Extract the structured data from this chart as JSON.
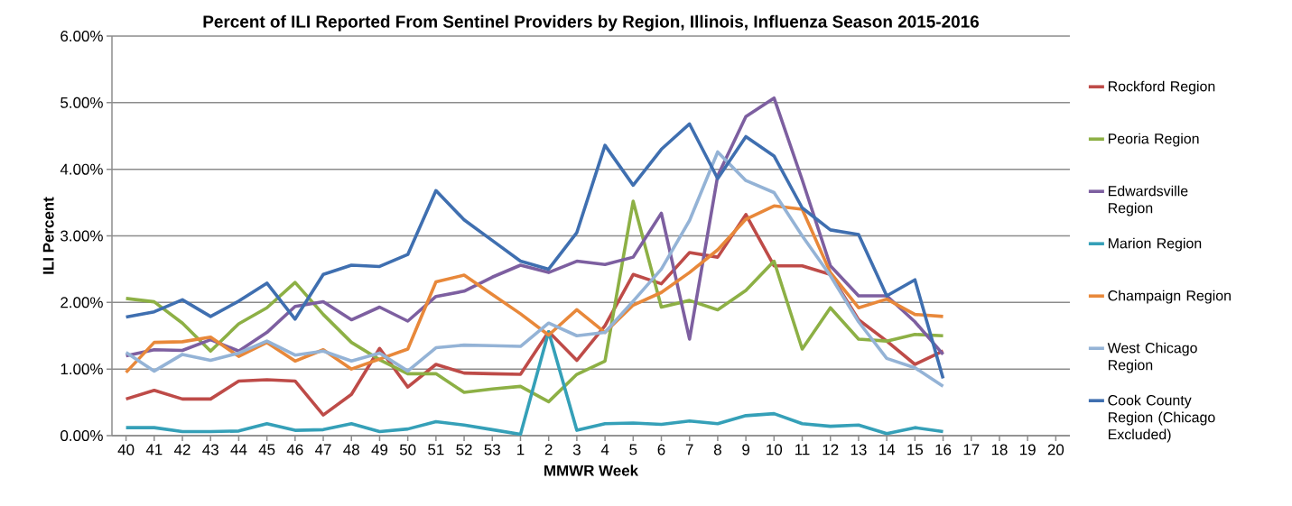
{
  "chart_data": {
    "type": "line",
    "title": "Percent of ILI Reported From Sentinel Providers by Region, Illinois, Influenza Season 2015-2016",
    "xlabel": "MMWR Week",
    "ylabel": "ILI Percent",
    "categories": [
      "40",
      "41",
      "42",
      "43",
      "44",
      "45",
      "46",
      "47",
      "48",
      "49",
      "50",
      "51",
      "52",
      "53",
      "1",
      "2",
      "3",
      "4",
      "5",
      "6",
      "7",
      "8",
      "9",
      "10",
      "11",
      "12",
      "13",
      "14",
      "15",
      "16",
      "17",
      "18",
      "19",
      "20"
    ],
    "ylim": [
      0,
      6
    ],
    "yticks": [
      {
        "value": 0,
        "label": "0.00%"
      },
      {
        "value": 1,
        "label": "1.00%"
      },
      {
        "value": 2,
        "label": "2.00%"
      },
      {
        "value": 3,
        "label": "3.00%"
      },
      {
        "value": 4,
        "label": "4.00%"
      },
      {
        "value": 5,
        "label": "5.00%"
      },
      {
        "value": 6,
        "label": "6.00%"
      }
    ],
    "grid": "y",
    "legend": "right",
    "marker": "none",
    "line_style": "solid",
    "series": [
      {
        "name": "Rockford Region",
        "color": "#be4b48",
        "values": [
          0.55,
          0.68,
          0.55,
          0.55,
          0.82,
          0.84,
          0.82,
          0.31,
          0.62,
          1.31,
          0.73,
          1.07,
          0.94,
          0.93,
          0.92,
          1.56,
          1.13,
          1.65,
          2.42,
          2.28,
          2.75,
          2.68,
          3.32,
          2.55,
          2.55,
          2.42,
          1.74,
          1.42,
          1.07,
          1.27,
          null,
          null,
          null,
          null
        ]
      },
      {
        "name": "Peoria Region",
        "color": "#8db045",
        "values": [
          2.06,
          2.01,
          1.69,
          1.27,
          1.68,
          1.92,
          2.3,
          1.82,
          1.4,
          1.14,
          0.93,
          0.93,
          0.65,
          0.7,
          0.74,
          0.51,
          0.92,
          1.12,
          3.52,
          1.93,
          2.03,
          1.89,
          2.18,
          2.62,
          1.3,
          1.92,
          1.45,
          1.42,
          1.52,
          1.5,
          null,
          null,
          null,
          null
        ]
      },
      {
        "name": "Edwardsville Region",
        "color": "#7d5fa0",
        "values": [
          1.2,
          1.29,
          1.28,
          1.44,
          1.27,
          1.55,
          1.94,
          2.01,
          1.74,
          1.93,
          1.72,
          2.09,
          2.17,
          2.38,
          2.56,
          2.45,
          2.62,
          2.57,
          2.68,
          3.34,
          1.45,
          3.9,
          4.79,
          5.07,
          3.84,
          2.55,
          2.1,
          2.1,
          1.71,
          1.22,
          null,
          null,
          null,
          null
        ]
      },
      {
        "name": "Marion Region",
        "color": "#35a0b8",
        "values": [
          0.12,
          0.12,
          0.06,
          0.06,
          0.07,
          0.18,
          0.08,
          0.09,
          0.18,
          0.06,
          0.1,
          0.21,
          0.16,
          0.09,
          0.02,
          1.56,
          0.08,
          0.18,
          0.19,
          0.17,
          0.22,
          0.18,
          0.3,
          0.33,
          0.18,
          0.14,
          0.16,
          0.03,
          0.12,
          0.06,
          null,
          null,
          null,
          null
        ]
      },
      {
        "name": "Champaign Region",
        "color": "#e8883a",
        "values": [
          0.95,
          1.4,
          1.41,
          1.48,
          1.19,
          1.4,
          1.12,
          1.29,
          1.0,
          1.15,
          1.3,
          2.31,
          2.41,
          2.12,
          1.83,
          1.51,
          1.89,
          1.55,
          1.96,
          2.15,
          2.45,
          2.79,
          3.25,
          3.45,
          3.4,
          2.45,
          1.92,
          2.05,
          1.82,
          1.79,
          null,
          null,
          null,
          null
        ]
      },
      {
        "name": "West Chicago Region",
        "color": "#94b3d6",
        "values": [
          1.25,
          0.97,
          1.22,
          1.13,
          1.24,
          1.42,
          1.21,
          1.27,
          1.12,
          1.24,
          0.97,
          1.32,
          1.36,
          1.35,
          1.34,
          1.69,
          1.5,
          1.55,
          2.02,
          2.5,
          3.23,
          4.26,
          3.83,
          3.65,
          3.0,
          2.4,
          1.71,
          1.16,
          1.02,
          0.74,
          null,
          null,
          null,
          null
        ]
      },
      {
        "name": "Cook County Region (Chicago Excluded)",
        "color": "#3f6fb0",
        "values": [
          1.78,
          1.86,
          2.04,
          1.79,
          2.02,
          2.29,
          1.75,
          2.42,
          2.56,
          2.54,
          2.72,
          3.68,
          3.24,
          2.93,
          2.62,
          2.5,
          3.05,
          4.36,
          3.76,
          4.3,
          4.68,
          3.86,
          4.49,
          4.2,
          3.42,
          3.09,
          3.02,
          2.1,
          2.34,
          0.86,
          null,
          null,
          null,
          null
        ]
      }
    ]
  }
}
